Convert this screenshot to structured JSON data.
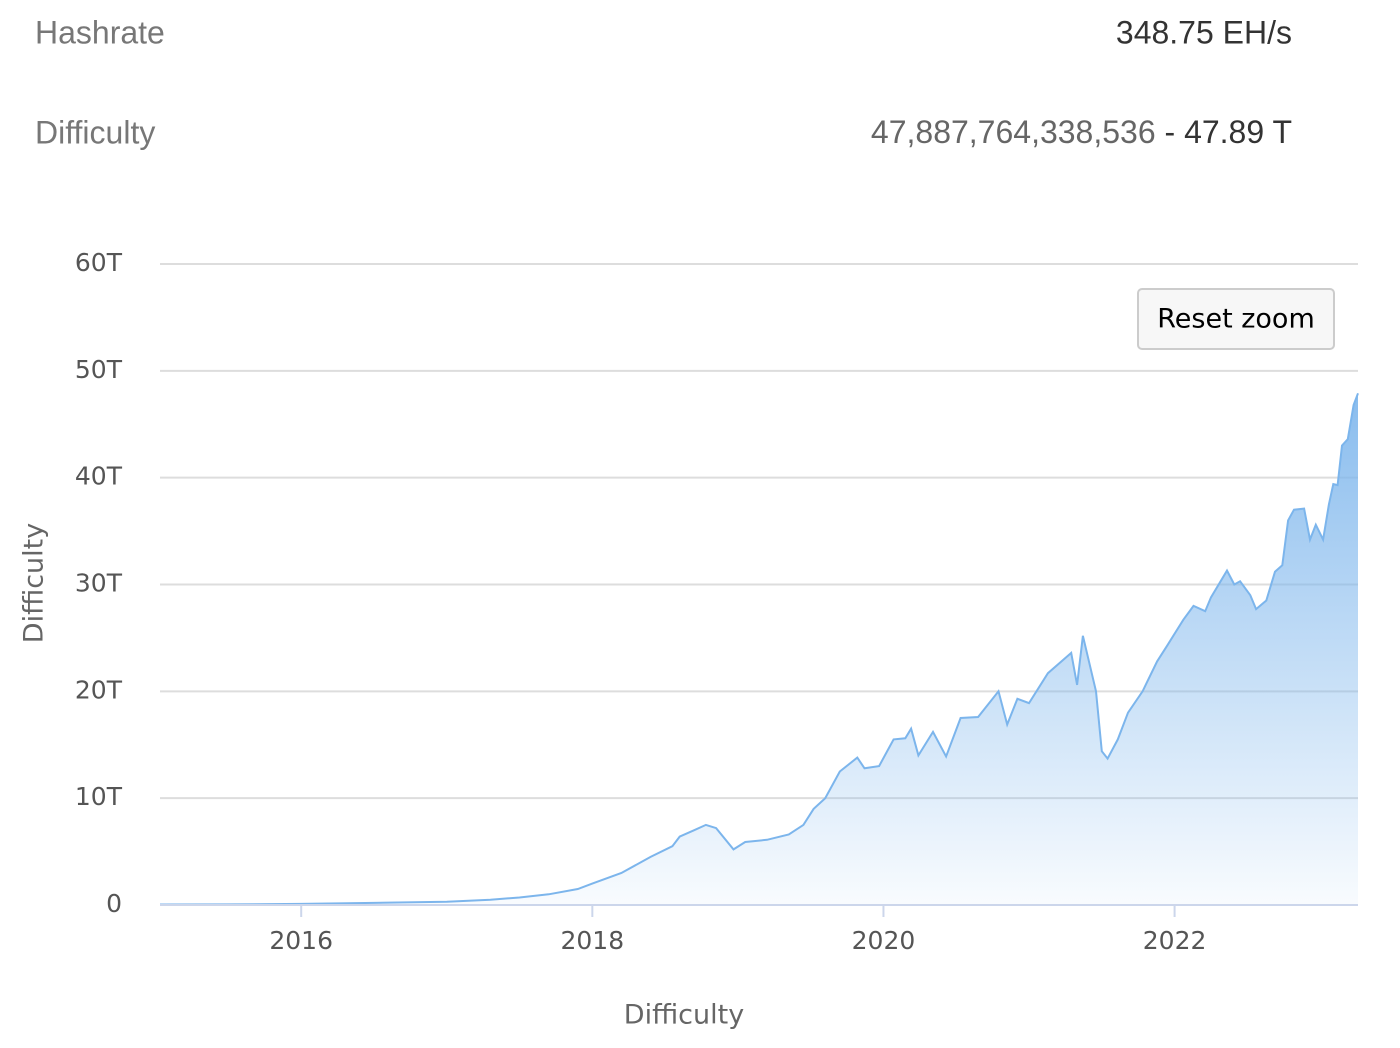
{
  "stats": [
    {
      "label": "Hashrate",
      "value": "348.75 EH/s"
    },
    {
      "label": "Difficulty",
      "value": "47,887,764,338,536",
      "separator": "-",
      "short": "47.89 T"
    }
  ],
  "reset_button": "Reset zoom",
  "chart_data": {
    "type": "area",
    "x_label": "Difficulty",
    "y_label": "Difficulty",
    "color": "#7cb5ec",
    "x": [
      2015.03,
      2015.5,
      2016.0,
      2016.5,
      2017.0,
      2017.3,
      2017.5,
      2017.7,
      2017.9,
      2018.0,
      2018.2,
      2018.4,
      2018.55,
      2018.6,
      2018.7,
      2018.78,
      2018.85,
      2018.97,
      2019.05,
      2019.2,
      2019.35,
      2019.45,
      2019.52,
      2019.6,
      2019.7,
      2019.82,
      2019.87,
      2019.97,
      2020.07,
      2020.15,
      2020.19,
      2020.24,
      2020.34,
      2020.43,
      2020.53,
      2020.65,
      2020.79,
      2020.85,
      2020.92,
      2021.0,
      2021.13,
      2021.29,
      2021.33,
      2021.37,
      2021.46,
      2021.5,
      2021.54,
      2021.61,
      2021.68,
      2021.78,
      2021.88,
      2021.95,
      2022.06,
      2022.13,
      2022.21,
      2022.25,
      2022.36,
      2022.41,
      2022.45,
      2022.52,
      2022.56,
      2022.63,
      2022.69,
      2022.74,
      2022.78,
      2022.82,
      2022.89,
      2022.93,
      2022.97,
      2023.02,
      2023.06,
      2023.09,
      2023.12,
      2023.15,
      2023.19,
      2023.23,
      2023.26
    ],
    "values": [
      0.05,
      0.06,
      0.1,
      0.2,
      0.3,
      0.5,
      0.7,
      1.0,
      1.5,
      2.0,
      3.0,
      4.5,
      5.5,
      6.4,
      7.0,
      7.5,
      7.2,
      5.2,
      5.9,
      6.1,
      6.6,
      7.5,
      9.0,
      10.0,
      12.5,
      13.8,
      12.8,
      13.0,
      15.5,
      15.6,
      16.5,
      14.0,
      16.2,
      13.9,
      17.5,
      17.6,
      20.0,
      16.9,
      19.3,
      18.9,
      21.7,
      23.6,
      20.6,
      25.2,
      20.0,
      14.4,
      13.7,
      15.5,
      18.0,
      20.0,
      22.8,
      24.3,
      26.7,
      28.0,
      27.5,
      28.8,
      31.3,
      30.0,
      30.3,
      29.0,
      27.7,
      28.5,
      31.2,
      31.8,
      36.0,
      37.0,
      37.1,
      34.2,
      35.6,
      34.2,
      37.5,
      39.4,
      39.3,
      43.0,
      43.6,
      46.8,
      47.9
    ],
    "xlim": [
      2015.03,
      2023.26
    ],
    "xticks": [
      2016,
      2018,
      2020,
      2022
    ],
    "ylim": [
      0,
      60
    ],
    "yticks": [
      0,
      {
        "value": 10,
        "label": "10T"
      },
      {
        "value": 20,
        "label": "20T"
      },
      {
        "value": 30,
        "label": "30T"
      },
      {
        "value": 40,
        "label": "40T"
      },
      {
        "value": 50,
        "label": "50T"
      },
      {
        "value": 60,
        "label": "60T"
      }
    ],
    "grid": true
  }
}
